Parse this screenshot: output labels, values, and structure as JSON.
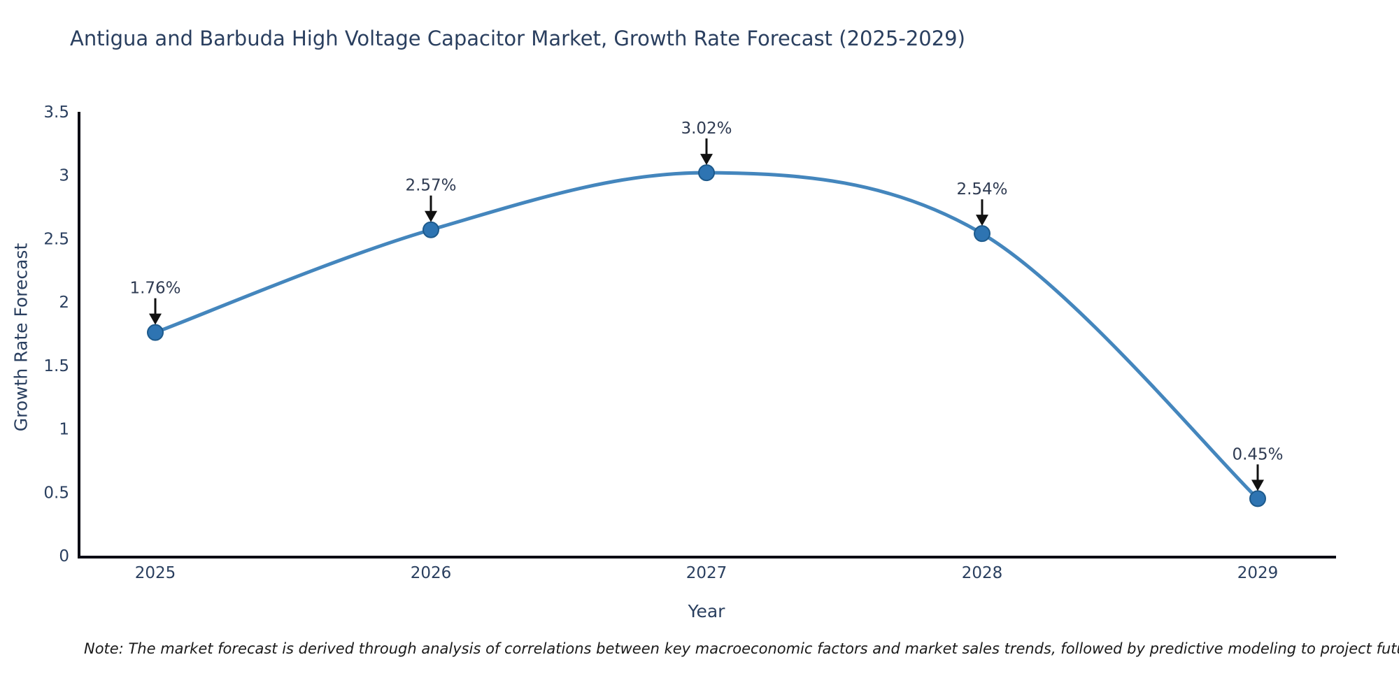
{
  "title": "Antigua and Barbuda High Voltage Capacitor Market, Growth Rate Forecast (2025-2029)",
  "note": "Note: The market forecast is derived through analysis of correlations between key macroeconomic factors and market sales trends, followed by predictive modeling to project future sales",
  "chart_data": {
    "type": "line",
    "title": "Antigua and Barbuda High Voltage Capacitor Market, Growth Rate Forecast (2025-2029)",
    "xlabel": "Year",
    "ylabel": "Growth Rate Forecast",
    "categories": [
      "2025",
      "2026",
      "2027",
      "2028",
      "2029"
    ],
    "values": [
      1.76,
      2.57,
      3.02,
      2.54,
      0.45
    ],
    "point_labels": [
      "1.76%",
      "2.57%",
      "3.02%",
      "2.54%",
      "0.45%"
    ],
    "yticks": [
      0,
      0.5,
      1,
      1.5,
      2,
      2.5,
      3,
      3.5
    ],
    "ylim": [
      0,
      3.5
    ],
    "line_shape": "spline",
    "grid": false,
    "legend": "none",
    "annotation_style": "value labels with black down-arrows pointing at markers",
    "colors": {
      "line": "#4486bd",
      "marker_fill": "#2e74b2",
      "marker_edge": "#1d5a8c",
      "axis_line": "#0b0b14",
      "text": "#2a3f5f",
      "arrow": "#111111",
      "background": "#ffffff"
    }
  }
}
